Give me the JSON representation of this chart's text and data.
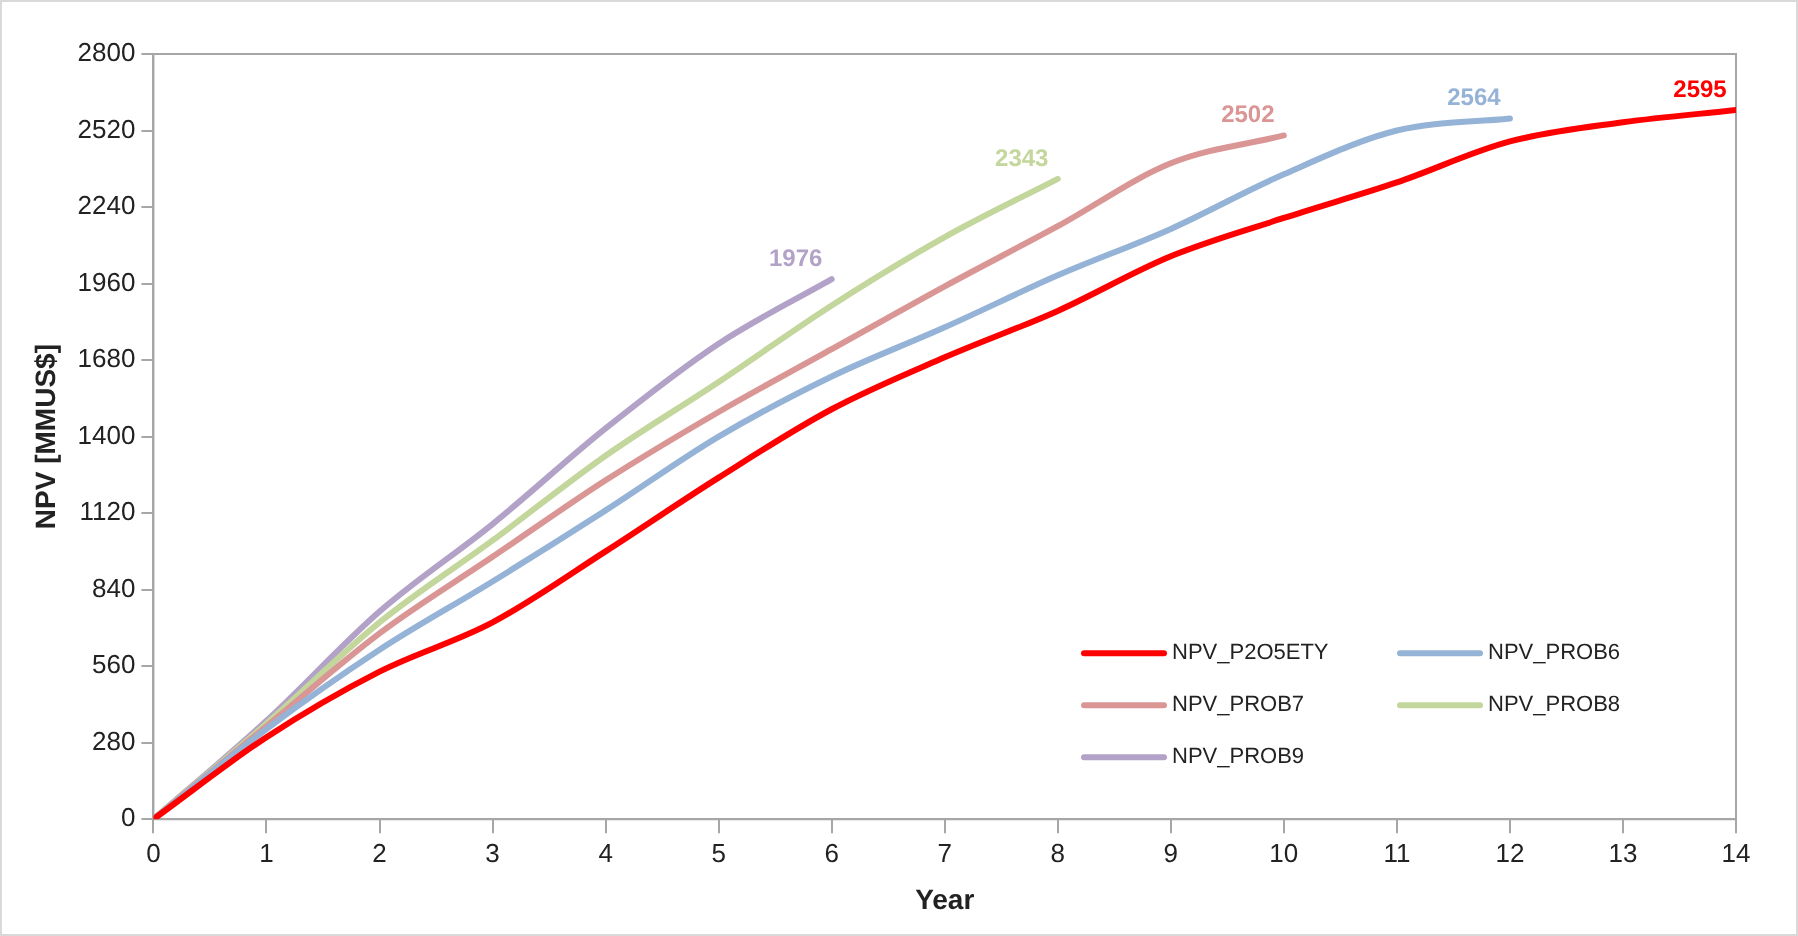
{
  "chart_data": {
    "type": "line",
    "xlabel": "Year",
    "ylabel": "NPV [MMUS$]",
    "x": [
      0,
      1,
      2,
      3,
      4,
      5,
      6,
      7,
      8,
      9,
      10,
      11,
      12,
      13,
      14
    ],
    "xlim": [
      0,
      14
    ],
    "xticks": [
      0,
      1,
      2,
      3,
      4,
      5,
      6,
      7,
      8,
      9,
      10,
      11,
      12,
      13,
      14
    ],
    "ylim": [
      0,
      2800
    ],
    "yticks": [
      0,
      280,
      560,
      840,
      1120,
      1400,
      1680,
      1960,
      2240,
      2520,
      2800
    ],
    "grid": false,
    "legend": "bottom right",
    "marker": "none",
    "line_style": "solid",
    "series": [
      {
        "name": "NPV_P2O5ETY",
        "color": "#ff0000",
        "values": [
          0,
          300,
          540,
          720,
          980,
          1250,
          1500,
          1690,
          1860,
          2060,
          2200,
          2330,
          2480,
          2550,
          2595
        ],
        "value_labels": [
          null,
          null,
          null,
          null,
          null,
          null,
          null,
          null,
          null,
          null,
          null,
          null,
          null,
          null,
          "2595"
        ]
      },
      {
        "name": "NPV_PROB6",
        "color": "#95b3d7",
        "values": [
          0,
          330,
          620,
          870,
          1130,
          1400,
          1620,
          1800,
          1990,
          2160,
          2360,
          2520,
          2564,
          null,
          null
        ],
        "value_labels": [
          null,
          null,
          null,
          null,
          null,
          null,
          null,
          null,
          null,
          null,
          null,
          null,
          "2564",
          null,
          null
        ]
      },
      {
        "name": "NPV_PROB7",
        "color": "#d99694",
        "values": [
          0,
          340,
          680,
          960,
          1240,
          1490,
          1720,
          1950,
          2170,
          2400,
          2502,
          null,
          null,
          null,
          null
        ],
        "value_labels": [
          null,
          null,
          null,
          null,
          null,
          null,
          null,
          null,
          null,
          null,
          "2502",
          null,
          null,
          null,
          null
        ]
      },
      {
        "name": "NPV_PROB8",
        "color": "#c3d69b",
        "values": [
          0,
          350,
          720,
          1020,
          1330,
          1600,
          1880,
          2130,
          2343,
          null,
          null,
          null,
          null,
          null,
          null
        ],
        "value_labels": [
          null,
          null,
          null,
          null,
          null,
          null,
          null,
          null,
          "2343",
          null,
          null,
          null,
          null,
          null,
          null
        ]
      },
      {
        "name": "NPV_PROB9",
        "color": "#b3a2c7",
        "values": [
          0,
          360,
          760,
          1080,
          1430,
          1740,
          1976,
          null,
          null,
          null,
          null,
          null,
          null,
          null,
          null
        ],
        "value_labels": [
          null,
          null,
          null,
          null,
          null,
          null,
          "1976",
          null,
          null,
          null,
          null,
          null,
          null,
          null,
          null
        ]
      }
    ]
  }
}
